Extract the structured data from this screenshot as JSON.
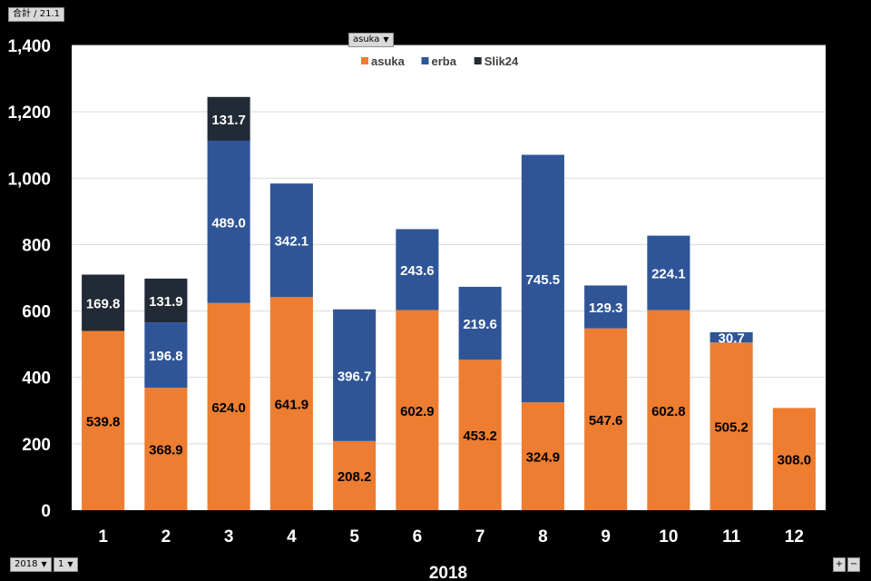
{
  "toolbar": {
    "sum_label": "合計 / 21.1",
    "series_filter": "asuka",
    "year_filter": "2018",
    "month_filter": "1",
    "expand_label": "+",
    "collapse_label": "−"
  },
  "chart_data": {
    "type": "bar",
    "stacked": true,
    "categories": [
      "1",
      "2",
      "3",
      "4",
      "5",
      "6",
      "7",
      "8",
      "9",
      "10",
      "11",
      "12"
    ],
    "series": [
      {
        "name": "asuka",
        "color": "#ed7d31",
        "values": [
          539.8,
          368.9,
          624.0,
          641.9,
          208.2,
          602.9,
          453.2,
          324.9,
          547.6,
          602.8,
          505.2,
          308.0
        ]
      },
      {
        "name": "erba",
        "color": "#2f5597",
        "values": [
          null,
          196.8,
          489.0,
          342.1,
          396.7,
          243.6,
          219.6,
          745.5,
          129.3,
          224.1,
          30.7,
          null
        ]
      },
      {
        "name": "Slik24",
        "color": "#222a35",
        "values": [
          169.8,
          131.9,
          131.7,
          null,
          null,
          null,
          null,
          null,
          null,
          null,
          null,
          null
        ]
      }
    ],
    "xlabel": "2018",
    "ylabel": "",
    "ylim": [
      0,
      1400
    ],
    "yticks": [
      "0",
      "200",
      "400",
      "600",
      "800",
      "1,000",
      "1,200",
      "1,400"
    ],
    "ytick_values": [
      0,
      200,
      400,
      600,
      800,
      1000,
      1200,
      1400
    ],
    "legend_position": "top-center",
    "grid": true
  }
}
